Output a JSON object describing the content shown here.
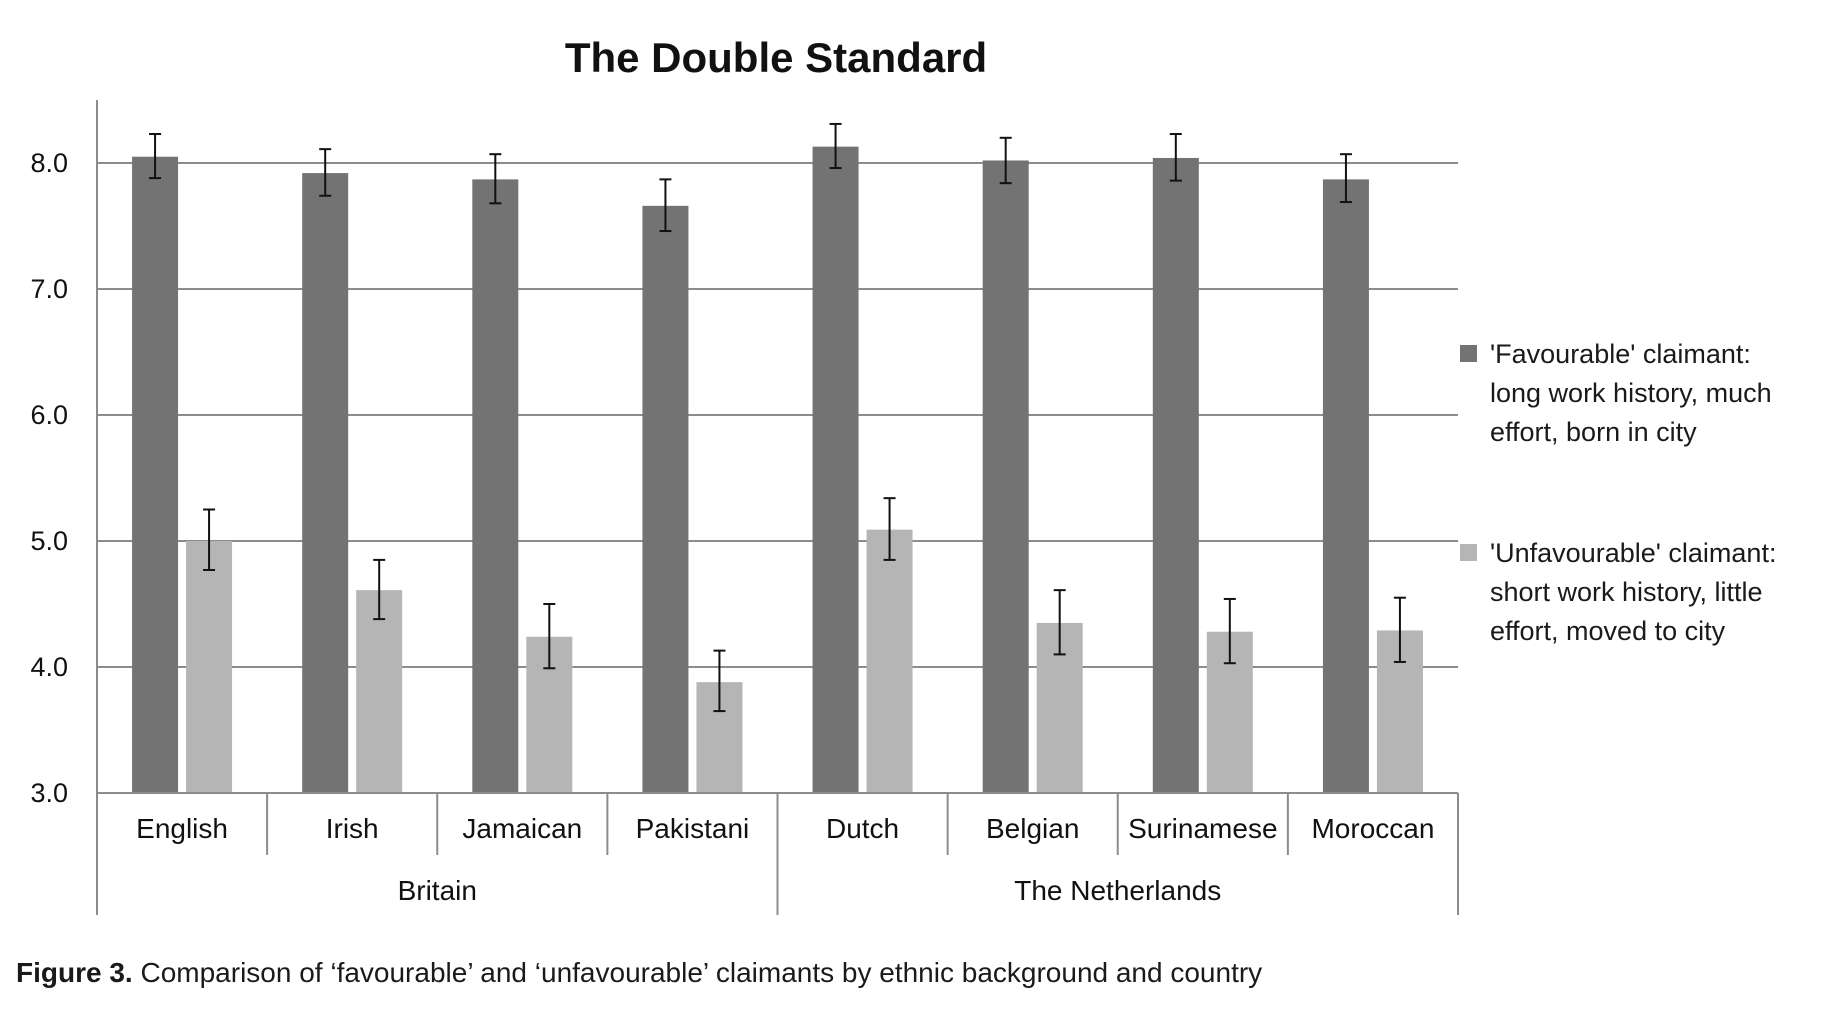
{
  "figure_caption": {
    "label": "Figure 3.",
    "text": " Comparison of ‘favourable’ and ‘unfavourable’ claimants by ethnic background and country"
  },
  "chart_data": {
    "type": "bar",
    "title": "The Double Standard",
    "xlabel": "",
    "ylabel": "",
    "ylim": [
      3.0,
      8.5
    ],
    "yticks": [
      "3.0",
      "4.0",
      "5.0",
      "6.0",
      "7.0",
      "8.0"
    ],
    "grid": true,
    "legend_position": "right",
    "categories": [
      "English",
      "Irish",
      "Jamaican",
      "Pakistani",
      "Dutch",
      "Belgian",
      "Surinamese",
      "Moroccan"
    ],
    "groups": [
      {
        "label": "Britain",
        "categories": [
          "English",
          "Irish",
          "Jamaican",
          "Pakistani"
        ]
      },
      {
        "label": "The Netherlands",
        "categories": [
          "Dutch",
          "Belgian",
          "Surinamese",
          "Moroccan"
        ]
      }
    ],
    "series": [
      {
        "name": "'Favourable' claimant: long work history, much effort, born in city",
        "legend_lines": [
          "'Favourable' claimant:",
          "long work history, much",
          "effort, born in city"
        ],
        "color": "#737373",
        "values": [
          8.05,
          7.92,
          7.87,
          7.66,
          8.13,
          8.02,
          8.04,
          7.87
        ],
        "error_low": [
          7.88,
          7.74,
          7.68,
          7.46,
          7.96,
          7.84,
          7.86,
          7.69
        ],
        "error_high": [
          8.23,
          8.11,
          8.07,
          7.87,
          8.31,
          8.2,
          8.23,
          8.07
        ]
      },
      {
        "name": "'Unfavourable' claimant: short work history, little effort, moved to city",
        "legend_lines": [
          "'Unfavourable' claimant:",
          "short work history, little",
          "effort, moved to city"
        ],
        "color": "#b5b5b5",
        "values": [
          5.0,
          4.61,
          4.24,
          3.88,
          5.09,
          4.35,
          4.28,
          4.29
        ],
        "error_low": [
          4.77,
          4.38,
          3.99,
          3.65,
          4.85,
          4.1,
          4.03,
          4.04
        ],
        "error_high": [
          5.25,
          4.85,
          4.5,
          4.13,
          5.34,
          4.61,
          4.54,
          4.55
        ]
      }
    ]
  }
}
